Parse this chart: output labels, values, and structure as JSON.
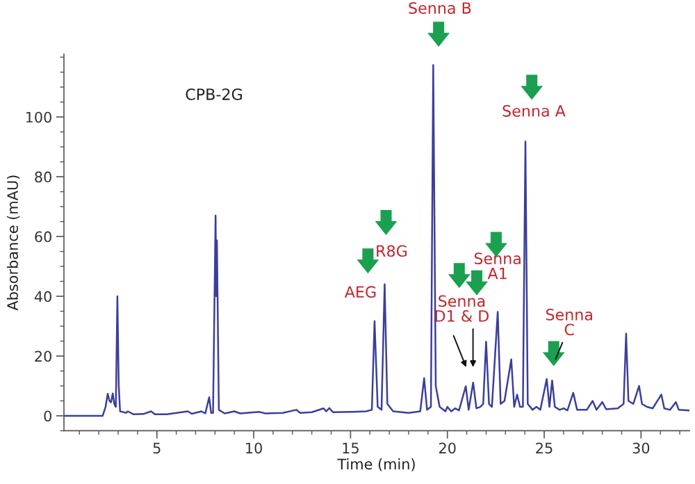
{
  "chart_data": {
    "type": "line",
    "xlabel": "Time (min)",
    "ylabel": "Absorbance (mAU)",
    "xlim": [
      0.2,
      32.5
    ],
    "ylim": [
      -5,
      121
    ],
    "xticks": [
      5,
      10,
      15,
      20,
      25,
      30
    ],
    "yticks": [
      0,
      20,
      40,
      60,
      80,
      100
    ],
    "grid": false,
    "legend": false,
    "marker": "none",
    "line_style": "solid",
    "series": [
      {
        "color": "#3b3f9a",
        "x": [
          0.2,
          2.2,
          2.35,
          2.46,
          2.55,
          2.63,
          2.72,
          2.8,
          2.88,
          2.96,
          3.03,
          3.1,
          3.4,
          3.5,
          3.8,
          4.3,
          4.7,
          4.9,
          5.5,
          6.6,
          6.8,
          7.3,
          7.5,
          7.7,
          7.8,
          7.9,
          8.03,
          8.07,
          8.1,
          8.2,
          8.5,
          9.0,
          9.3,
          10.3,
          10.6,
          11.5,
          12.2,
          12.4,
          13.0,
          13.6,
          13.75,
          13.9,
          14.1,
          15,
          15.8,
          16.1,
          16.24,
          16.4,
          16.6,
          16.76,
          16.9,
          17.2,
          18,
          18.6,
          18.8,
          18.95,
          19.15,
          19.27,
          19.4,
          19.6,
          19.9,
          20.0,
          20.2,
          20.4,
          20.6,
          20.95,
          21.1,
          21.33,
          21.5,
          21.7,
          21.85,
          22.0,
          22.15,
          22.3,
          22.6,
          22.75,
          22.95,
          23.3,
          23.45,
          23.6,
          23.75,
          23.9,
          24.03,
          24.15,
          24.4,
          24.6,
          24.8,
          25.13,
          25.27,
          25.41,
          25.55,
          25.8,
          26.0,
          26.2,
          26.5,
          26.7,
          27.2,
          27.5,
          27.7,
          28.0,
          28.2,
          28.8,
          29.1,
          29.23,
          29.35,
          29.6,
          29.9,
          30.05,
          30.3,
          30.6,
          31.05,
          31.2,
          31.5,
          31.8,
          31.95,
          32.5
        ],
        "values": [
          0,
          0,
          3,
          7.4,
          5,
          4.5,
          7.5,
          4,
          3,
          40,
          10,
          1.5,
          1,
          1.5,
          0.5,
          0.6,
          1.5,
          0.5,
          0.5,
          1.5,
          0.7,
          1.5,
          0.8,
          6.2,
          1,
          1,
          67,
          40,
          58.7,
          2,
          0.8,
          1.5,
          0.8,
          1.3,
          0.8,
          1,
          2,
          1,
          1.2,
          2.5,
          1.5,
          2.6,
          1.2,
          1.3,
          1.5,
          2,
          31.7,
          3,
          2,
          44,
          4,
          1.5,
          1,
          1.5,
          12.6,
          2,
          3,
          117.4,
          10,
          3,
          1.5,
          3,
          1.5,
          2.5,
          1.8,
          9.9,
          2,
          11.1,
          2.5,
          3,
          4,
          24.8,
          4,
          3,
          34.8,
          4,
          5,
          18.9,
          3,
          7.1,
          3,
          3,
          91.8,
          4,
          2,
          3,
          2,
          12.3,
          3,
          11.8,
          3,
          2,
          2.5,
          1.8,
          7.7,
          2,
          2,
          5,
          2,
          4.6,
          2.2,
          2.5,
          4,
          27.5,
          5,
          4,
          10,
          4,
          3,
          2.5,
          7.1,
          2.5,
          2,
          4.6,
          2,
          1.8
        ]
      }
    ],
    "annotations": [
      "CPB-2G",
      {
        "text": "AEG",
        "x": 16.24,
        "y": 31.7
      },
      {
        "text": "R8G",
        "x": 16.76,
        "y": 44
      },
      "Senna B",
      {
        "text": "Senna\nA1",
        "x": 22.6,
        "y": 34.8
      },
      "Senna\nD1 & D",
      {
        "text": "Senna A",
        "x": 24.03,
        "y": 91.8
      },
      "Senna\nC"
    ]
  }
}
